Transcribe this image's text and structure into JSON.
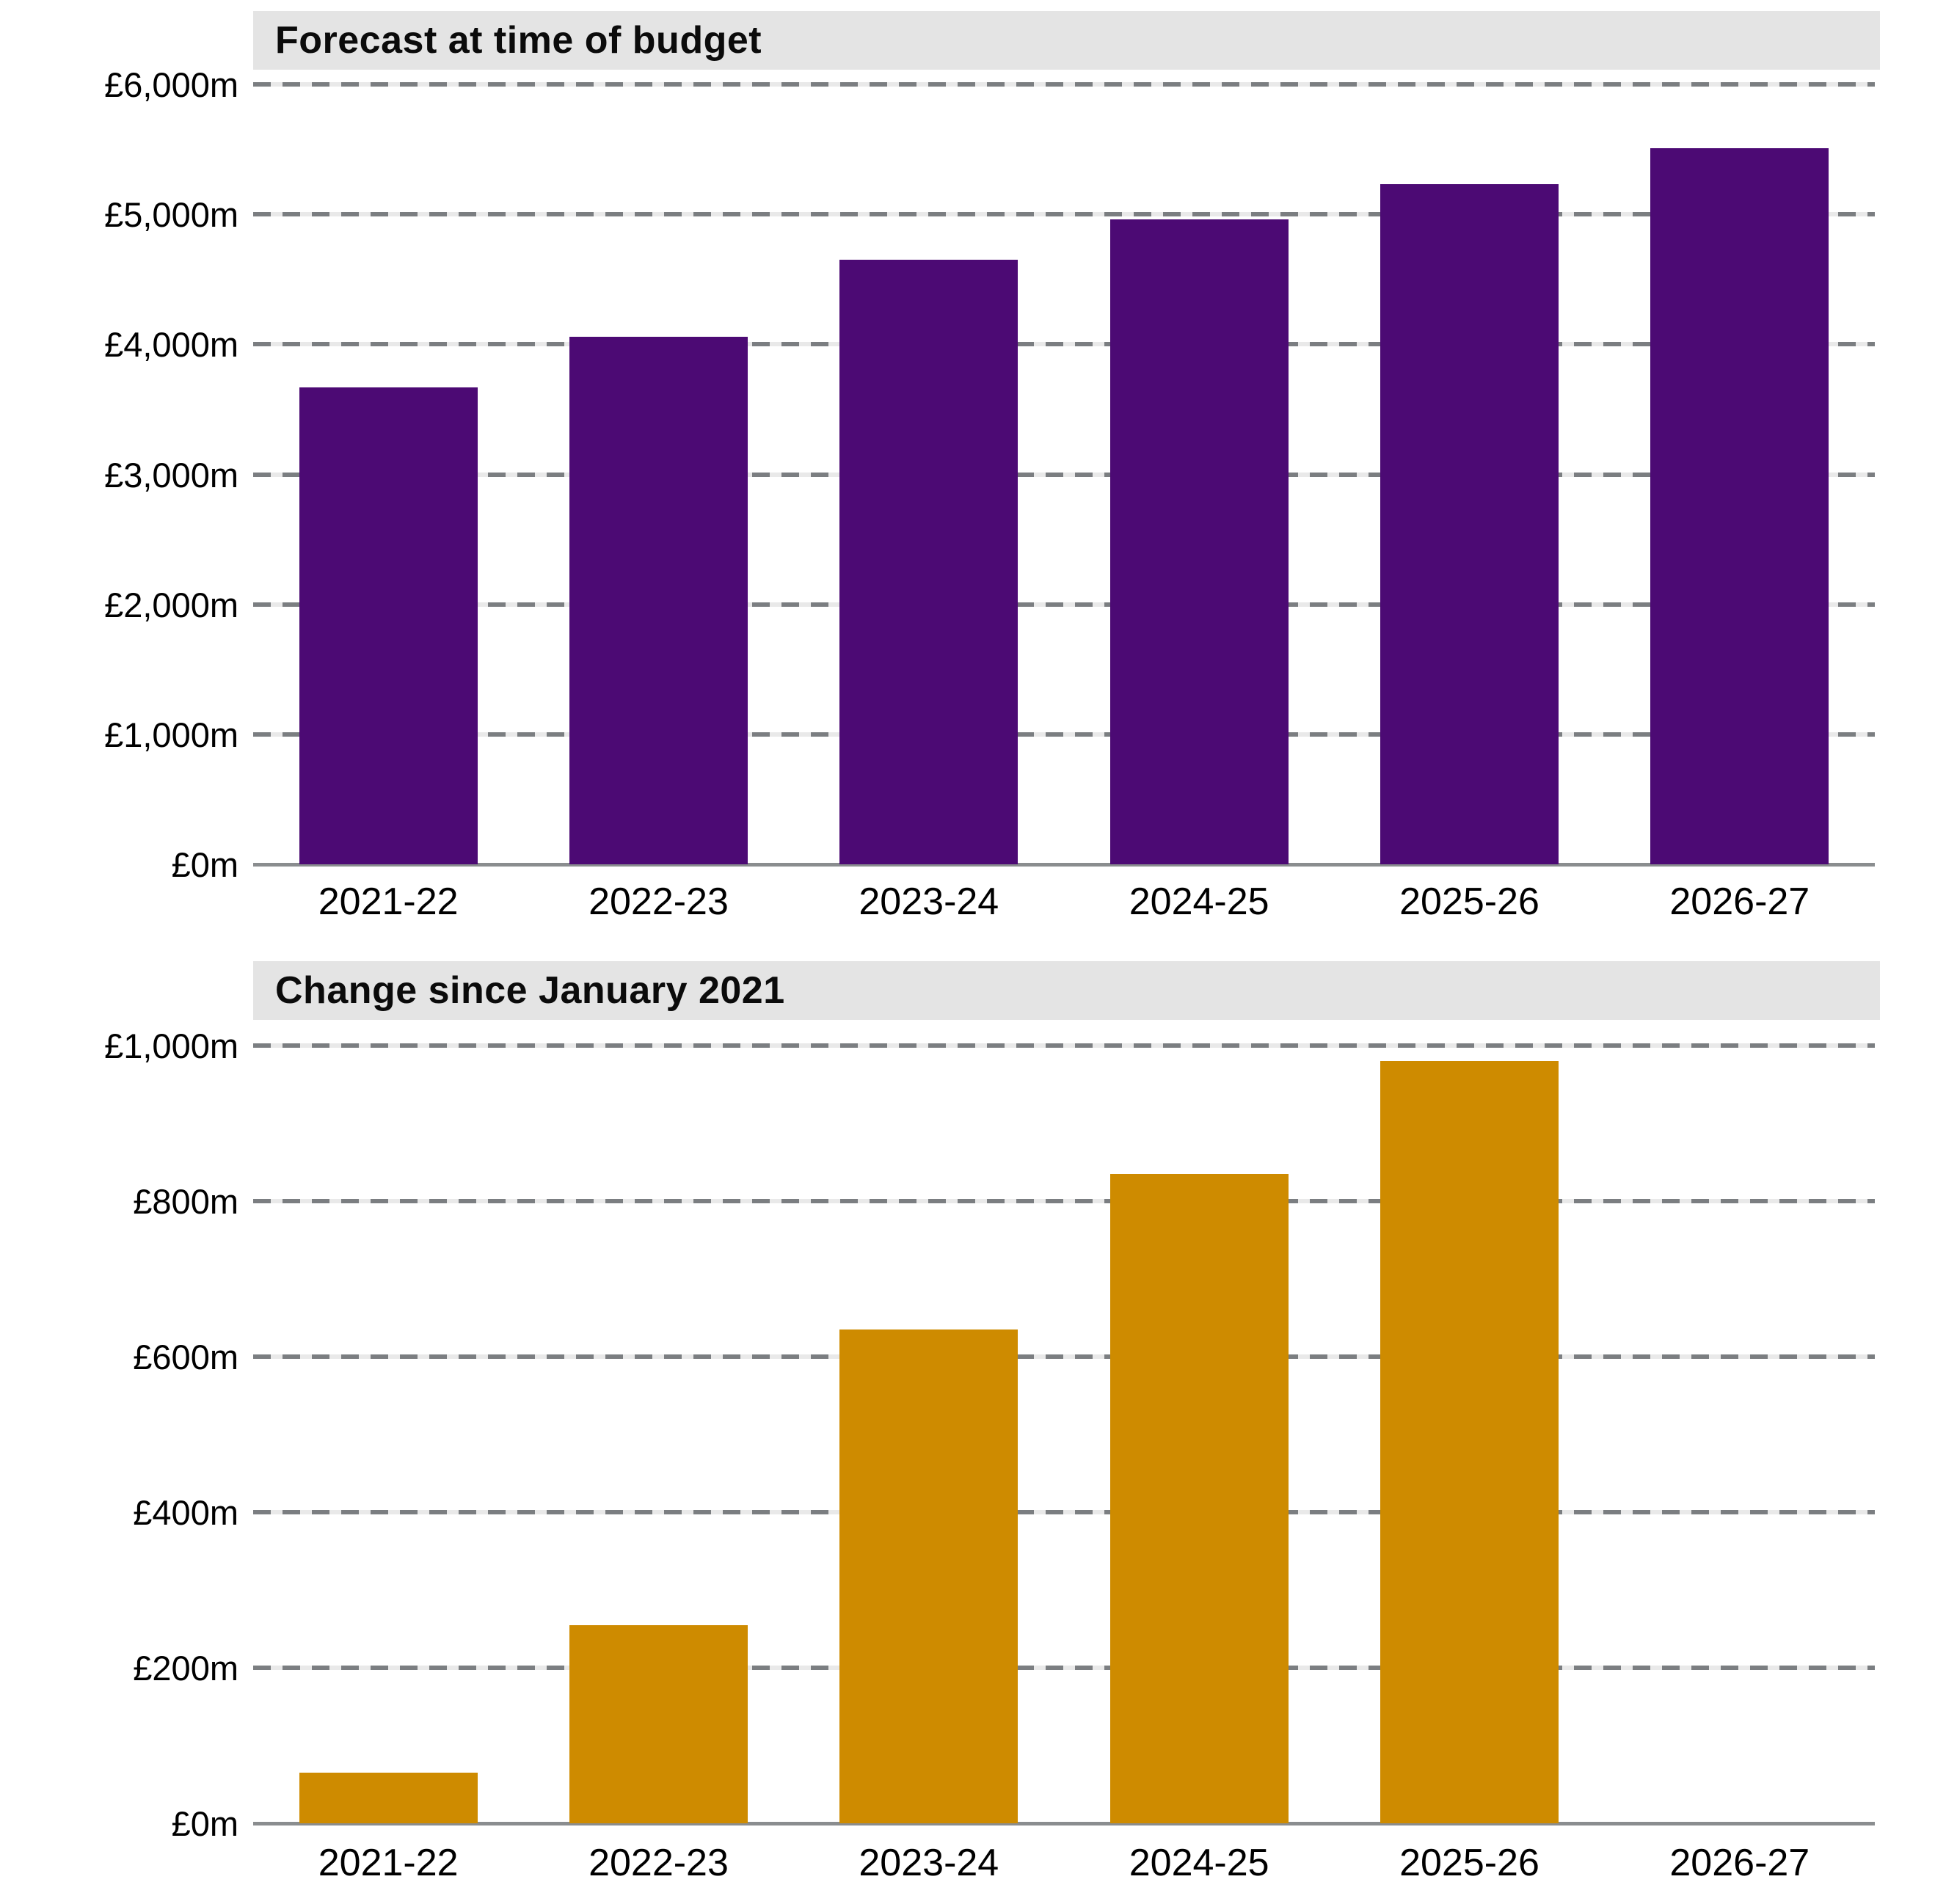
{
  "colors": {
    "banner_background": "#e4e4e4",
    "gridline_dash": "#7b7e81",
    "gridline_underlay": "#e9e9e9",
    "axis_line": "#8a8d8f",
    "text": "#000000",
    "forecast_bar": "#4c0a74",
    "change_bar": "#ce8b00"
  },
  "chart_data": [
    {
      "type": "bar",
      "title": "Forecast at time of budget",
      "categories": [
        "2021-22",
        "2022-23",
        "2023-24",
        "2024-25",
        "2025-26",
        "2026-27"
      ],
      "values": [
        3670,
        4060,
        4650,
        4960,
        5230,
        5510
      ],
      "unit": "£m",
      "xlabel": "",
      "ylabel": "",
      "ylim": [
        0,
        6000
      ],
      "ytick_step": 1000,
      "ytick_labels": [
        "£0m",
        "£1,000m",
        "£2,000m",
        "£3,000m",
        "£4,000m",
        "£5,000m",
        "£6,000m"
      ],
      "grid": "horizontal-dashed",
      "legend": "none",
      "bar_color": "#4c0a74"
    },
    {
      "type": "bar",
      "title": "Change since January 2021",
      "categories": [
        "2021-22",
        "2022-23",
        "2023-24",
        "2024-25",
        "2025-26",
        "2026-27"
      ],
      "values": [
        65,
        255,
        635,
        835,
        980,
        0
      ],
      "unit": "£m",
      "xlabel": "",
      "ylabel": "",
      "ylim": [
        0,
        1000
      ],
      "ytick_step": 200,
      "ytick_labels": [
        "£0m",
        "£200m",
        "£400m",
        "£600m",
        "£800m",
        "£1,000m"
      ],
      "grid": "horizontal-dashed",
      "legend": "none",
      "bar_color": "#ce8b00"
    }
  ]
}
